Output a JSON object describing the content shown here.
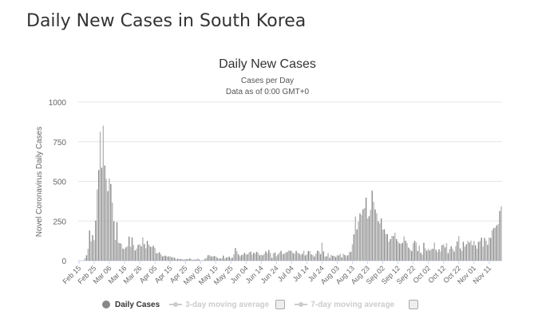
{
  "page_title": "Daily New Cases in South Korea",
  "chart_data": {
    "type": "bar",
    "title": "Daily New Cases",
    "subtitle": "Cases per Day",
    "subtitle2": "Data as of 0:00 GMT+0",
    "ylabel": "Novel Coronavirus Daily Cases",
    "xlabel": "",
    "ylim": [
      0,
      1000
    ],
    "yticks": [
      "0",
      "250",
      "500",
      "750",
      "1000"
    ],
    "ytick_values": [
      0,
      250,
      500,
      750,
      1000
    ],
    "x_start": "2020-02-15",
    "xticks": [
      "Feb 15",
      "Feb 25",
      "Mar 06",
      "Mar 16",
      "Mar 26",
      "Apr 05",
      "Apr 15",
      "Apr 25",
      "May 05",
      "May 15",
      "May 25",
      "Jun 04",
      "Jun 14",
      "Jun 24",
      "Jul 04",
      "Jul 14",
      "Jul 24",
      "Aug 03",
      "Aug 13",
      "Aug 23",
      "Sep 02",
      "Sep 12",
      "Sep 22",
      "Oct 02",
      "Oct 12",
      "Oct 22",
      "Nov 01",
      "Nov 11"
    ],
    "grid": true,
    "series": [
      {
        "name": "Daily Cases",
        "values": [
          0,
          0,
          1,
          1,
          15,
          34,
          75,
          190,
          123,
          161,
          130,
          253,
          449,
          571,
          813,
          586,
          851,
          600,
          516,
          438,
          518,
          483,
          367,
          248,
          131,
          242,
          114,
          110,
          107,
          76,
          74,
          84,
          93,
          152,
          87,
          147,
          98,
          64,
          76,
          100,
          104,
          91,
          146,
          105,
          78,
          125,
          101,
          89,
          86,
          94,
          81,
          47,
          47,
          53,
          39,
          27,
          30,
          32,
          25,
          27,
          27,
          22,
          22,
          18,
          8,
          13,
          9,
          11,
          8,
          6,
          10,
          10,
          10,
          14,
          9,
          4,
          9,
          6,
          13,
          8,
          3,
          2,
          4,
          12,
          18,
          34,
          35,
          27,
          26,
          29,
          27,
          19,
          13,
          15,
          13,
          32,
          12,
          20,
          23,
          25,
          16,
          19,
          40,
          79,
          58,
          39,
          27,
          35,
          38,
          49,
          39,
          39,
          51,
          57,
          38,
          50,
          45,
          56,
          48,
          34,
          37,
          34,
          43,
          59,
          49,
          67,
          48,
          17,
          46,
          51,
          28,
          39,
          51,
          62,
          42,
          43,
          51,
          54,
          63,
          63,
          61,
          48,
          44,
          62,
          50,
          45,
          35,
          44,
          62,
          33,
          39,
          61,
          60,
          39,
          34,
          26,
          45,
          63,
          59,
          41,
          113,
          58,
          25,
          28,
          48,
          18,
          36,
          31,
          30,
          23,
          34,
          33,
          43,
          20,
          43,
          36,
          28,
          34,
          54,
          56,
          103,
          166,
          279,
          197,
          246,
          297,
          288,
          324,
          332,
          397,
          266,
          280,
          320,
          441,
          371,
          323,
          299,
          248,
          235,
          267,
          195,
          198,
          168,
          167,
          119,
          136,
          156,
          155,
          176,
          136,
          121,
          109,
          106,
          113,
          153,
          126,
          110,
          82,
          70,
          61,
          110,
          125,
          114,
          61,
          95,
          50,
          38,
          113,
          77,
          63,
          75,
          64,
          73,
          75,
          114,
          69,
          54,
          72,
          58,
          98,
          102,
          84,
          110,
          47,
          73,
          91,
          76,
          58,
          91,
          121,
          155,
          77,
          61,
          119,
          88,
          103,
          125,
          114,
          127,
          97,
          124,
          97,
          75,
          118,
          125,
          145,
          89,
          143,
          126,
          100,
          146,
          143,
          191,
          205,
          208,
          223,
          230,
          313,
          343
        ]
      }
    ],
    "legend": {
      "placement": "bottom",
      "entries": [
        "Daily Cases",
        "3-day moving average",
        "7-day moving average"
      ]
    },
    "colors": {
      "bar": "#999999",
      "grid": "#e6e6e6",
      "axis": "#ccd6eb"
    }
  }
}
